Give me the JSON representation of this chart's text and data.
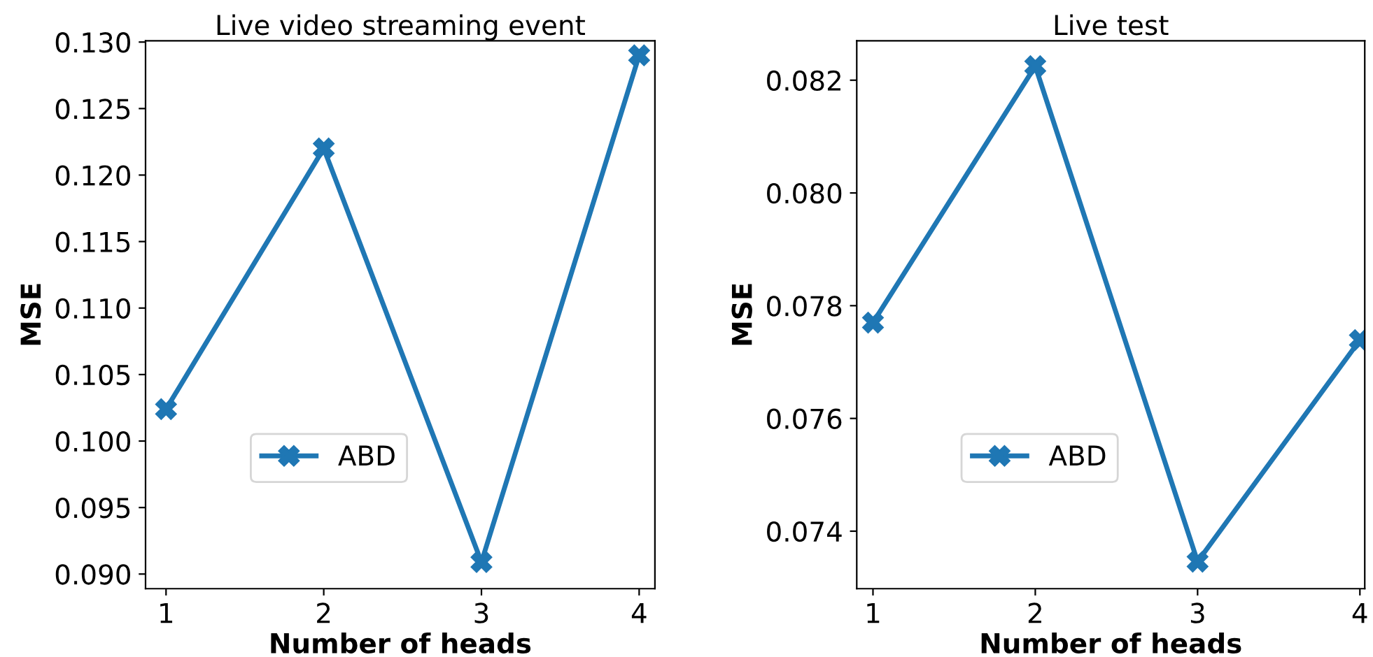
{
  "chart_data": [
    {
      "type": "line",
      "title": "Live video streaming event",
      "xlabel": "Number of heads",
      "ylabel": "MSE",
      "x": [
        1,
        2,
        3,
        4
      ],
      "xlim": [
        0.87,
        4.1
      ],
      "xticks": [
        1,
        2,
        3,
        4
      ],
      "ylim": [
        0.0889,
        0.1301
      ],
      "yticks": [
        {
          "value": 0.09,
          "label": "0.090"
        },
        {
          "value": 0.095,
          "label": "0.095"
        },
        {
          "value": 0.1,
          "label": "0.100"
        },
        {
          "value": 0.105,
          "label": "0.105"
        },
        {
          "value": 0.11,
          "label": "0.110"
        },
        {
          "value": 0.115,
          "label": "0.115"
        },
        {
          "value": 0.12,
          "label": "0.120"
        },
        {
          "value": 0.125,
          "label": "0.125"
        },
        {
          "value": 0.13,
          "label": "0.130"
        }
      ],
      "marker": "cross",
      "legend": "bottom",
      "grid": false,
      "series": [
        {
          "name": "ABD",
          "color": "#1f77b4",
          "values": [
            0.1024,
            0.122,
            0.0909,
            0.129
          ]
        }
      ]
    },
    {
      "type": "line",
      "title": "Live test",
      "xlabel": "Number of heads",
      "ylabel": "MSE",
      "x": [
        1,
        2,
        3,
        4
      ],
      "xlim": [
        0.9,
        4.03
      ],
      "xticks": [
        1,
        2,
        3,
        4
      ],
      "ylim": [
        0.07298,
        0.0827
      ],
      "yticks": [
        {
          "value": 0.074,
          "label": "0.074"
        },
        {
          "value": 0.076,
          "label": "0.076"
        },
        {
          "value": 0.078,
          "label": "0.078"
        },
        {
          "value": 0.08,
          "label": "0.080"
        },
        {
          "value": 0.082,
          "label": "0.082"
        }
      ],
      "marker": "cross",
      "legend": "bottom",
      "grid": false,
      "series": [
        {
          "name": "ABD",
          "color": "#1f77b4",
          "values": [
            0.0777,
            0.08225,
            0.07346,
            0.07739
          ]
        }
      ]
    }
  ]
}
